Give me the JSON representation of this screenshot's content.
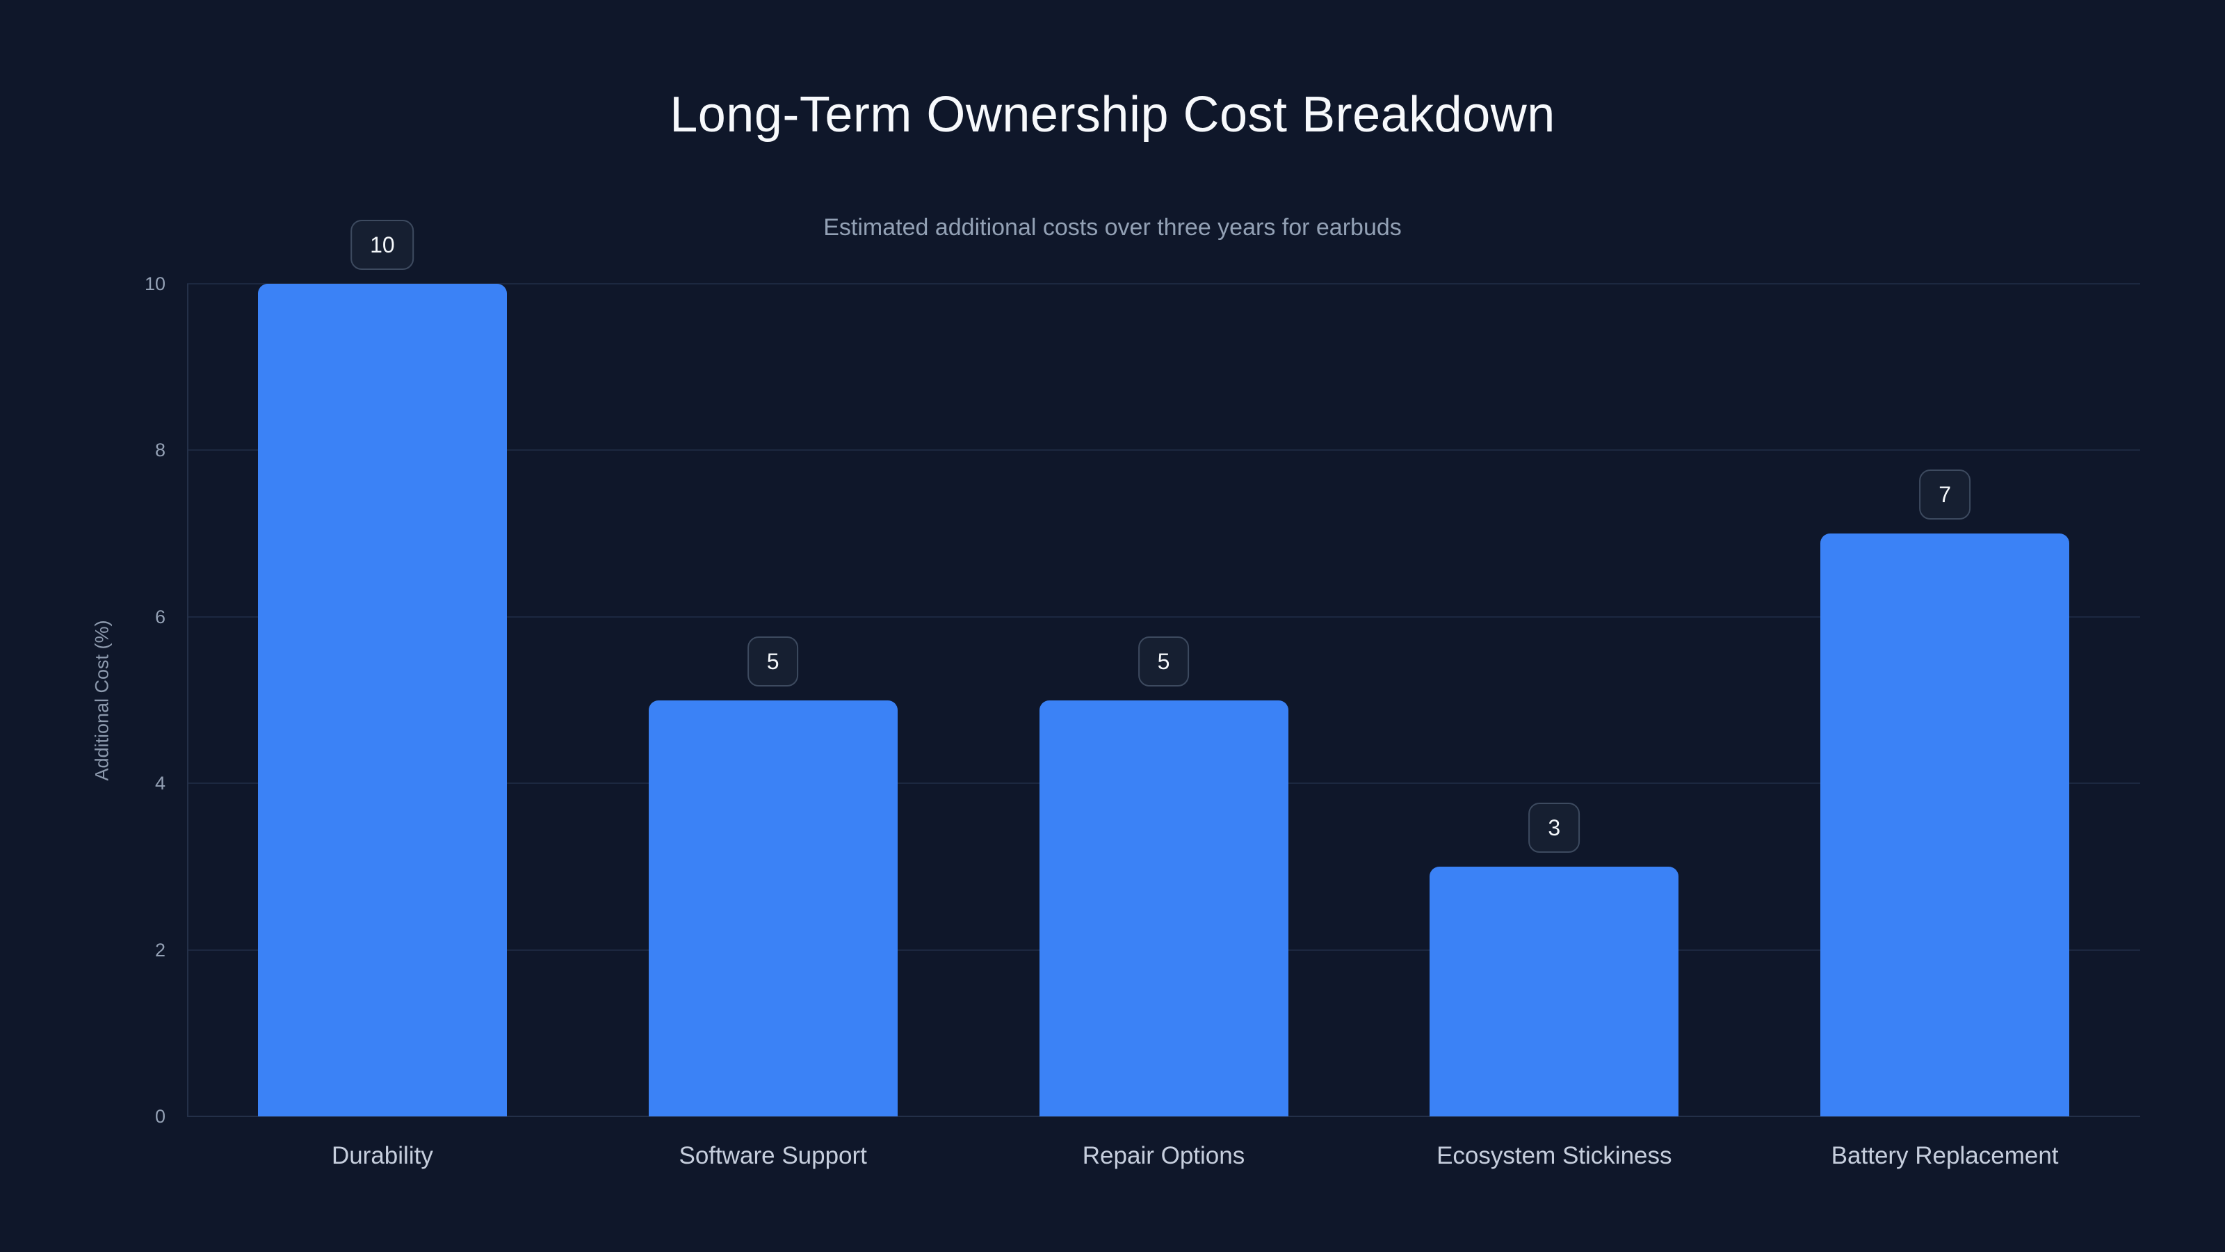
{
  "chart_data": {
    "type": "bar",
    "title": "Long-Term Ownership Cost Breakdown",
    "subtitle": "Estimated additional costs over three years for earbuds",
    "categories": [
      "Durability",
      "Software Support",
      "Repair Options",
      "Ecosystem Stickiness",
      "Battery Replacement"
    ],
    "values": [
      10,
      5,
      5,
      3,
      7
    ],
    "value_labels": [
      "10",
      "5",
      "5",
      "3",
      "7"
    ],
    "xlabel": "",
    "ylabel": "Additional Cost (%)",
    "ylim": [
      0,
      10
    ],
    "yticks": [
      0,
      2,
      4,
      6,
      8,
      10
    ],
    "grid": true,
    "legend": "none",
    "bar_corner": "rounded-top"
  },
  "colors": {
    "background": "#0f172a",
    "bar": "#3b82f6",
    "title_text": "#f7f9fc",
    "subtitle_text": "#93a1b5",
    "axis_title_text": "#8c99ad",
    "tick_text": "#93a0b4",
    "category_text": "#c6cedd",
    "gridline": "#1c2840",
    "axis_line": "#243048",
    "badge_background": "#161f31",
    "badge_border": "#3d4a5f",
    "badge_text": "#f4f7fa"
  }
}
